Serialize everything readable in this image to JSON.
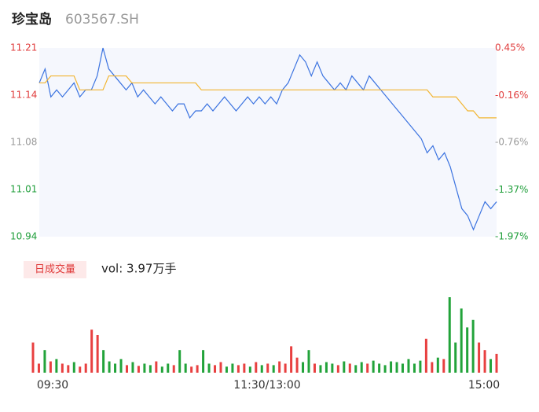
{
  "chart_data": {
    "type": "line",
    "title": "珍宝岛",
    "code": "603567.SH",
    "ylim": [
      10.94,
      11.21
    ],
    "yticks": [
      {
        "value": 11.21,
        "label": "11.21",
        "color": "#e03c3c"
      },
      {
        "value": 11.1425,
        "label": "11.14",
        "color": "#e03c3c"
      },
      {
        "value": 11.075,
        "label": "11.08",
        "color": "#999999"
      },
      {
        "value": 11.0075,
        "label": "11.01",
        "color": "#1f9e3a"
      },
      {
        "value": 10.94,
        "label": "10.94",
        "color": "#1f9e3a"
      }
    ],
    "y2lim": [
      -1.97,
      0.45
    ],
    "y2ticks": [
      {
        "value": 0.45,
        "label": "0.45%",
        "color": "#e03c3c"
      },
      {
        "value": -0.16,
        "label": "-0.16%",
        "color": "#e03c3c"
      },
      {
        "value": -0.76,
        "label": "-0.76%",
        "color": "#999999"
      },
      {
        "value": -1.37,
        "label": "-1.37%",
        "color": "#1f9e3a"
      },
      {
        "value": -1.97,
        "label": "-1.97%",
        "color": "#1f9e3a"
      }
    ],
    "series": [
      {
        "color": "#3b73e0",
        "values": [
          11.16,
          11.18,
          11.14,
          11.15,
          11.14,
          11.15,
          11.16,
          11.14,
          11.15,
          11.15,
          11.17,
          11.21,
          11.18,
          11.17,
          11.16,
          11.15,
          11.16,
          11.14,
          11.15,
          11.14,
          11.13,
          11.14,
          11.13,
          11.12,
          11.13,
          11.13,
          11.11,
          11.12,
          11.12,
          11.13,
          11.12,
          11.13,
          11.14,
          11.13,
          11.12,
          11.13,
          11.14,
          11.13,
          11.14,
          11.13,
          11.14,
          11.13,
          11.15,
          11.16,
          11.18,
          11.2,
          11.19,
          11.17,
          11.19,
          11.17,
          11.16,
          11.15,
          11.16,
          11.15,
          11.17,
          11.16,
          11.15,
          11.17,
          11.16,
          11.15,
          11.14,
          11.13,
          11.12,
          11.11,
          11.1,
          11.09,
          11.08,
          11.06,
          11.07,
          11.05,
          11.06,
          11.04,
          11.01,
          10.98,
          10.97,
          10.95,
          10.97,
          10.99,
          10.98,
          10.99
        ]
      },
      {
        "color": "#f2b530",
        "values": [
          11.16,
          11.16,
          11.17,
          11.17,
          11.17,
          11.17,
          11.17,
          11.15,
          11.15,
          11.15,
          11.15,
          11.15,
          11.17,
          11.17,
          11.17,
          11.17,
          11.16,
          11.16,
          11.16,
          11.16,
          11.16,
          11.16,
          11.16,
          11.16,
          11.16,
          11.16,
          11.16,
          11.16,
          11.15,
          11.15,
          11.15,
          11.15,
          11.15,
          11.15,
          11.15,
          11.15,
          11.15,
          11.15,
          11.15,
          11.15,
          11.15,
          11.15,
          11.15,
          11.15,
          11.15,
          11.15,
          11.15,
          11.15,
          11.15,
          11.15,
          11.15,
          11.15,
          11.15,
          11.15,
          11.15,
          11.15,
          11.15,
          11.15,
          11.15,
          11.15,
          11.15,
          11.15,
          11.15,
          11.15,
          11.15,
          11.15,
          11.15,
          11.15,
          11.14,
          11.14,
          11.14,
          11.14,
          11.14,
          11.13,
          11.12,
          11.12,
          11.11,
          11.11,
          11.11,
          11.11
        ]
      }
    ],
    "volume": {
      "label": "日成交量",
      "text": "vol: 3.97万手",
      "ylim": [
        0,
        100
      ],
      "values": [
        40,
        12,
        30,
        15,
        18,
        12,
        10,
        14,
        8,
        12,
        57,
        50,
        30,
        15,
        12,
        18,
        10,
        14,
        9,
        12,
        10,
        15,
        8,
        12,
        10,
        30,
        12,
        8,
        10,
        30,
        12,
        10,
        14,
        8,
        12,
        10,
        12,
        8,
        14,
        10,
        12,
        10,
        15,
        12,
        35,
        20,
        14,
        30,
        12,
        10,
        14,
        12,
        10,
        15,
        12,
        10,
        14,
        12,
        16,
        12,
        10,
        15,
        14,
        12,
        18,
        12,
        16,
        45,
        14,
        20,
        18,
        100,
        40,
        85,
        60,
        70,
        40,
        30,
        18,
        25
      ],
      "colors": [
        "#e84040",
        "#e84040",
        "#22a33a",
        "#e84040",
        "#22a33a",
        "#e84040",
        "#e84040",
        "#22a33a",
        "#e84040",
        "#e84040",
        "#e84040",
        "#e84040",
        "#22a33a",
        "#22a33a",
        "#22a33a",
        "#22a33a",
        "#e84040",
        "#22a33a",
        "#e84040",
        "#22a33a",
        "#22a33a",
        "#e84040",
        "#22a33a",
        "#22a33a",
        "#e84040",
        "#22a33a",
        "#22a33a",
        "#e84040",
        "#e84040",
        "#22a33a",
        "#22a33a",
        "#e84040",
        "#e84040",
        "#22a33a",
        "#22a33a",
        "#e84040",
        "#e84040",
        "#22a33a",
        "#e84040",
        "#22a33a",
        "#e84040",
        "#22a33a",
        "#e84040",
        "#e84040",
        "#e84040",
        "#e84040",
        "#22a33a",
        "#22a33a",
        "#e84040",
        "#22a33a",
        "#22a33a",
        "#22a33a",
        "#e84040",
        "#22a33a",
        "#e84040",
        "#22a33a",
        "#22a33a",
        "#e84040",
        "#22a33a",
        "#22a33a",
        "#22a33a",
        "#22a33a",
        "#22a33a",
        "#22a33a",
        "#22a33a",
        "#22a33a",
        "#22a33a",
        "#e84040",
        "#e84040",
        "#22a33a",
        "#e84040",
        "#22a33a",
        "#22a33a",
        "#22a33a",
        "#22a33a",
        "#22a33a",
        "#e84040",
        "#e84040",
        "#22a33a",
        "#e84040"
      ]
    },
    "time_labels": [
      "09:30",
      "11:30/13:00",
      "15:00"
    ]
  }
}
